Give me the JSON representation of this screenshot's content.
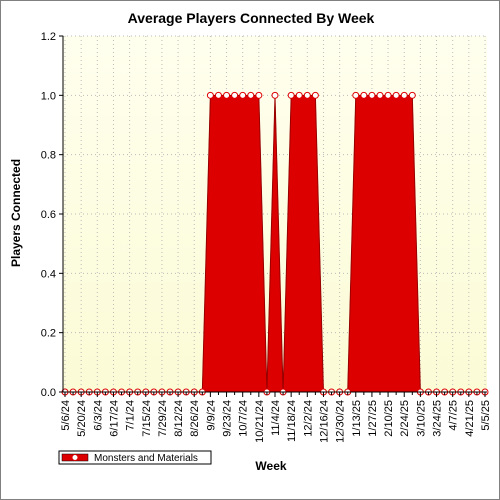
{
  "chart_data": {
    "type": "area",
    "title": "Average Players Connected By Week",
    "xlabel": "Week",
    "ylabel": "Players Connected",
    "ylim": [
      0,
      1.2
    ],
    "yticks": [
      "0.0",
      "0.2",
      "0.4",
      "0.6",
      "0.8",
      "1.0",
      "1.2"
    ],
    "ytick_values": [
      0,
      0.2,
      0.4,
      0.6,
      0.8,
      1.0,
      1.2
    ],
    "grid": true,
    "legend_position": "bottom-left",
    "x_tick_labels": [
      "5/6/24",
      "5/20/24",
      "6/3/24",
      "6/17/24",
      "7/1/24",
      "7/15/24",
      "7/29/24",
      "8/12/24",
      "8/26/24",
      "9/9/24",
      "9/23/24",
      "10/7/24",
      "10/21/24",
      "11/4/24",
      "11/18/24",
      "12/2/24",
      "12/16/24",
      "12/30/24",
      "1/13/25",
      "1/27/25",
      "2/10/25",
      "2/24/25",
      "3/10/25",
      "3/24/25",
      "4/7/25",
      "4/21/25",
      "5/5/25"
    ],
    "series": [
      {
        "name": "Monsters and Materials",
        "color": "#dd0000",
        "x": [
          "5/6/24",
          "5/13/24",
          "5/20/24",
          "5/27/24",
          "6/3/24",
          "6/10/24",
          "6/17/24",
          "6/24/24",
          "7/1/24",
          "7/8/24",
          "7/15/24",
          "7/22/24",
          "7/29/24",
          "8/5/24",
          "8/12/24",
          "8/19/24",
          "8/26/24",
          "9/2/24",
          "9/9/24",
          "9/16/24",
          "9/23/24",
          "9/30/24",
          "10/7/24",
          "10/14/24",
          "10/21/24",
          "10/28/24",
          "11/4/24",
          "11/11/24",
          "11/18/24",
          "11/25/24",
          "12/2/24",
          "12/9/24",
          "12/16/24",
          "12/23/24",
          "12/30/24",
          "1/6/25",
          "1/13/25",
          "1/20/25",
          "1/27/25",
          "2/3/25",
          "2/10/25",
          "2/17/25",
          "2/24/25",
          "3/3/25",
          "3/10/25",
          "3/17/25",
          "3/24/25",
          "3/31/25",
          "4/7/25",
          "4/14/25",
          "4/21/25",
          "4/28/25",
          "5/5/25"
        ],
        "values": [
          0,
          0,
          0,
          0,
          0,
          0,
          0,
          0,
          0,
          0,
          0,
          0,
          0,
          0,
          0,
          0,
          0,
          0,
          1,
          1,
          1,
          1,
          1,
          1,
          1,
          0,
          1,
          0,
          1,
          1,
          1,
          1,
          0,
          0,
          0,
          0,
          1,
          1,
          1,
          1,
          1,
          1,
          1,
          1,
          0,
          0,
          0,
          0,
          0,
          0,
          0,
          0,
          0
        ]
      }
    ]
  }
}
